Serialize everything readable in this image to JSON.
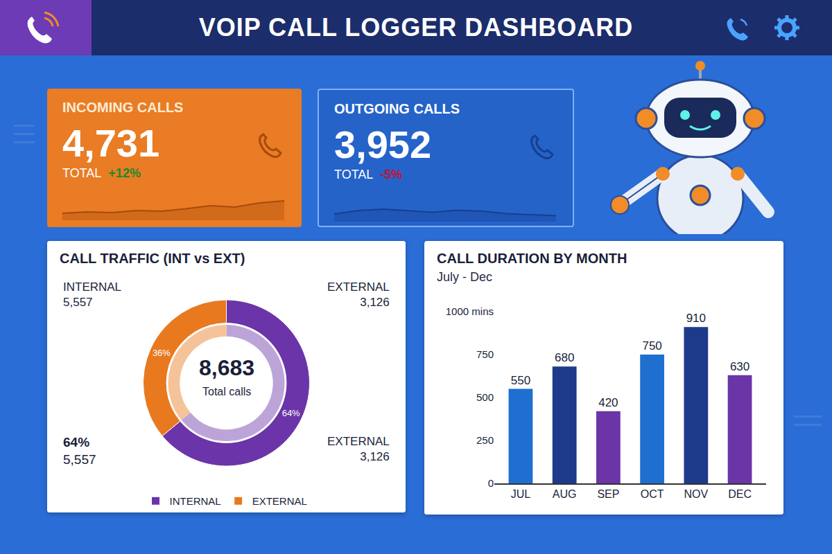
{
  "header": {
    "title": "VOIP CALL LOGGER DASHBOARD"
  },
  "cards": [
    {
      "title": "INCOMING CALLS",
      "value": "4,731",
      "label": "TOTAL",
      "change": "+12%",
      "color": "#e97c24",
      "trend": {
        "type": "line",
        "values": [
          2,
          2.4,
          2.2,
          2.8,
          2.6,
          3.3,
          4.2,
          3.8,
          5.0,
          5.6
        ],
        "ylim": [
          0,
          10
        ],
        "tick_labels": false,
        "color": "#a84a0c"
      }
    },
    {
      "title": "OUTGOING CALLS",
      "value": "3,952",
      "label": "TOTAL",
      "change": "-5%",
      "color": "#2563c9",
      "trend": {
        "type": "line",
        "values": [
          2.2,
          3.2,
          3.6,
          3.1,
          2.7,
          3.3,
          3.0,
          2.3,
          2.0,
          1.7
        ],
        "ylim": [
          0,
          10
        ],
        "tick_labels": false,
        "color": "#173f8f"
      }
    }
  ],
  "chart_data": [
    {
      "type": "pie",
      "title": "CALL TRAFFIC (INT vs EXT)",
      "categories": [
        "INTERNAL",
        "EXTERNAL"
      ],
      "values": [
        64,
        36
      ],
      "value_labels": [
        "64%",
        "36%"
      ],
      "colors": [
        "#6b34a8",
        "#e8791f"
      ],
      "data_labels": true,
      "legend": "bottom",
      "center_text": [
        "8,683",
        "Total calls"
      ],
      "corner_labels": [
        {
          "text": "INTERNAL",
          "count": "5,557"
        },
        {
          "text": "EXTERNAL",
          "count": "3,126"
        },
        {
          "text": "64%",
          "count": "5,557"
        },
        {
          "text": "EXTERNAL",
          "count": "3,126"
        }
      ]
    },
    {
      "type": "bar",
      "title": "CALL DURATION BY MONTH",
      "subtitle": "July - Dec",
      "categories": [
        "JUL",
        "AUG",
        "SEP",
        "OCT",
        "NOV",
        "DEC"
      ],
      "values": [
        550,
        680,
        420,
        750,
        910,
        630
      ],
      "colors": [
        "#1f6fd0",
        "#1e3a8a",
        "#6b35a8",
        "#1f6fd0",
        "#1e3a8a",
        "#6b35a8"
      ],
      "ylim": [
        0,
        1000
      ],
      "yticks": [
        0,
        250,
        500,
        750,
        {
          "value": 1000,
          "label": "1000 mins"
        }
      ],
      "grid": false,
      "data_labels": true
    }
  ]
}
